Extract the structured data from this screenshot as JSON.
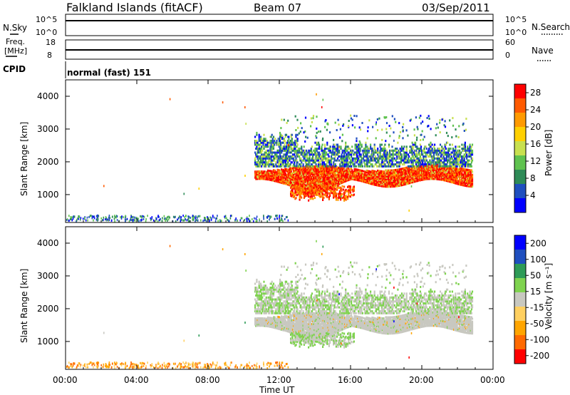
{
  "header": {
    "site": "Falkland Islands (fitACF)",
    "beam": "Beam 07",
    "date": "03/Sep/2011"
  },
  "mode": {
    "label": "normal (fast) 151"
  },
  "panels": {
    "nsky": {
      "label": "N.Sky",
      "ticks": [
        "10^5",
        "10^0"
      ]
    },
    "nsearch": {
      "label": "N.Search",
      "ticks": [
        "10^5",
        "10^0"
      ]
    },
    "freq": {
      "label_line1": "Freq.",
      "label_line2": "[MHz]",
      "ticks": [
        "18",
        "8"
      ]
    },
    "nave": {
      "label": "Nave",
      "ticks": [
        "60",
        "0"
      ]
    },
    "cpid": {
      "label": "CPID"
    }
  },
  "colors": {
    "power": [
      "#0000ff",
      "#1f4fbf",
      "#2e8b57",
      "#5fc24f",
      "#c8e04f",
      "#ffd000",
      "#ff9a00",
      "#ff5a00",
      "#ff0000"
    ],
    "velocity": [
      "#ff0000",
      "#ff6a00",
      "#ffa500",
      "#ffd060",
      "#c8c8c0",
      "#7fd34f",
      "#2e9b57",
      "#1f4fbf",
      "#0000ff"
    ],
    "ground_scatter": "#c8c8c0"
  },
  "chart_data": [
    {
      "type": "heatmap",
      "name": "power",
      "xlabel": "Time UT",
      "ylabel": "Slant Range [km]",
      "xlim": [
        0,
        24
      ],
      "ylim": [
        150,
        4500
      ],
      "x_ticks": [
        "00:00",
        "04:00",
        "08:00",
        "12:00",
        "16:00",
        "20:00",
        "00:00"
      ],
      "y_ticks": [
        1000,
        2000,
        3000,
        4000
      ],
      "colorbar": {
        "label": "Power [dB]",
        "ticks": [
          4,
          8,
          12,
          16,
          20,
          24,
          28
        ],
        "range": [
          0,
          30
        ]
      },
      "regions": [
        {
          "x": [
            11.0,
            22.8
          ],
          "y": [
            1250,
            1800
          ],
          "level": "high"
        },
        {
          "x": [
            10.5,
            22.8
          ],
          "y": [
            1800,
            2800
          ],
          "level": "medium"
        },
        {
          "x": [
            12.5,
            16.5
          ],
          "y": [
            900,
            1250
          ],
          "level": "high"
        },
        {
          "x": [
            0.0,
            12.0
          ],
          "y": [
            150,
            300
          ],
          "level": "low"
        }
      ]
    },
    {
      "type": "heatmap",
      "name": "velocity",
      "xlabel": "Time UT",
      "ylabel": "Slant Range [km]",
      "xlim": [
        0,
        24
      ],
      "ylim": [
        150,
        4500
      ],
      "x_ticks": [
        "00:00",
        "04:00",
        "08:00",
        "12:00",
        "16:00",
        "20:00",
        "00:00"
      ],
      "y_ticks": [
        1000,
        2000,
        3000,
        4000
      ],
      "colorbar": {
        "label": "Velocity [m s⁻¹]",
        "ticks": [
          200,
          100,
          50,
          15,
          -15,
          -50,
          -100,
          -200
        ]
      }
    }
  ],
  "axis_title": "Time UT"
}
